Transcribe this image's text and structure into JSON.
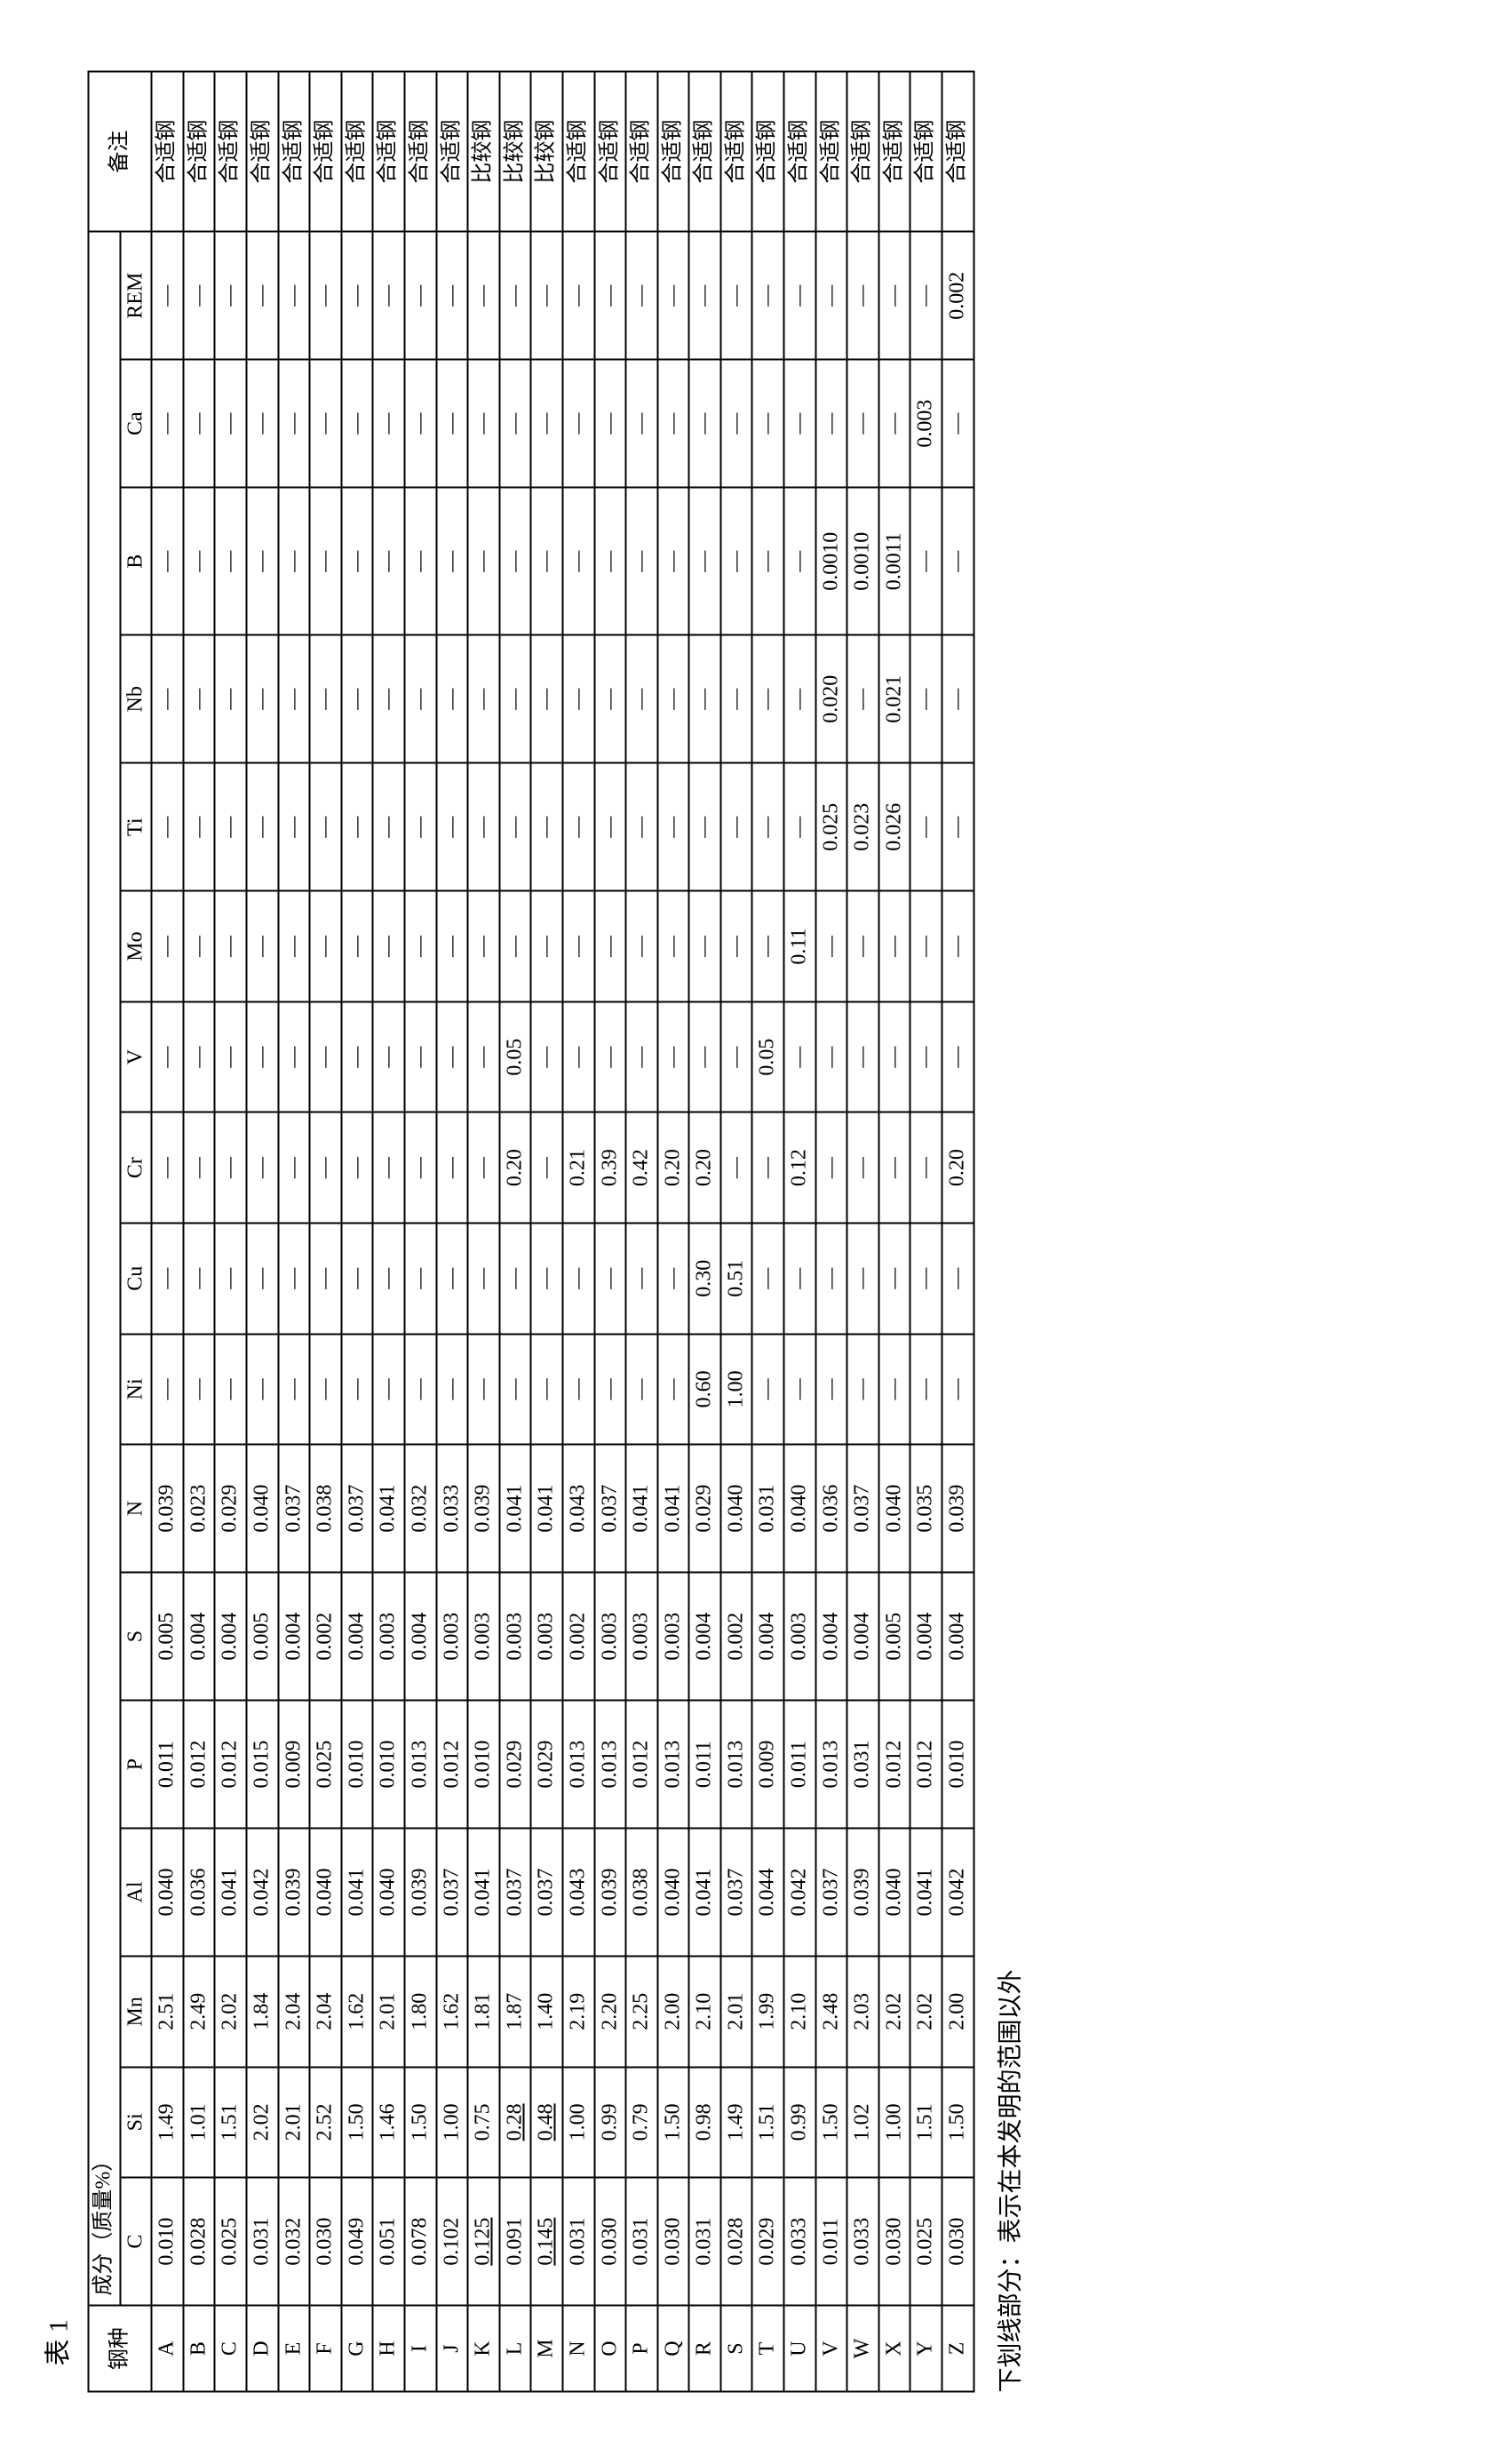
{
  "caption": "表 1",
  "footnote": "下划线部分：表示在本发明的范围以外",
  "header": {
    "steel": "钢种",
    "comp": "成分（质量%）",
    "note": "备注"
  },
  "columns": [
    "C",
    "Si",
    "Mn",
    "Al",
    "P",
    "S",
    "N",
    "Ni",
    "Cu",
    "Cr",
    "V",
    "Mo",
    "Ti",
    "Nb",
    "B",
    "Ca",
    "REM"
  ],
  "note_ok": "合适钢",
  "note_cmp": "比较钢",
  "dash": "—",
  "rows": [
    {
      "id": "A",
      "v": [
        "0.010",
        "1.49",
        "2.51",
        "0.040",
        "0.011",
        "0.005",
        "0.039",
        "",
        "",
        "",
        "",
        "",
        "",
        "",
        "",
        "",
        ""
      ],
      "note": "ok"
    },
    {
      "id": "B",
      "v": [
        "0.028",
        "1.01",
        "2.49",
        "0.036",
        "0.012",
        "0.004",
        "0.023",
        "",
        "",
        "",
        "",
        "",
        "",
        "",
        "",
        "",
        ""
      ],
      "note": "ok"
    },
    {
      "id": "C",
      "v": [
        "0.025",
        "1.51",
        "2.02",
        "0.041",
        "0.012",
        "0.004",
        "0.029",
        "",
        "",
        "",
        "",
        "",
        "",
        "",
        "",
        "",
        ""
      ],
      "note": "ok"
    },
    {
      "id": "D",
      "v": [
        "0.031",
        "2.02",
        "1.84",
        "0.042",
        "0.015",
        "0.005",
        "0.040",
        "",
        "",
        "",
        "",
        "",
        "",
        "",
        "",
        "",
        ""
      ],
      "note": "ok"
    },
    {
      "id": "E",
      "v": [
        "0.032",
        "2.01",
        "2.04",
        "0.039",
        "0.009",
        "0.004",
        "0.037",
        "",
        "",
        "",
        "",
        "",
        "",
        "",
        "",
        "",
        ""
      ],
      "note": "ok"
    },
    {
      "id": "F",
      "v": [
        "0.030",
        "2.52",
        "2.04",
        "0.040",
        "0.025",
        "0.002",
        "0.038",
        "",
        "",
        "",
        "",
        "",
        "",
        "",
        "",
        "",
        ""
      ],
      "note": "ok"
    },
    {
      "id": "G",
      "v": [
        "0.049",
        "1.50",
        "1.62",
        "0.041",
        "0.010",
        "0.004",
        "0.037",
        "",
        "",
        "",
        "",
        "",
        "",
        "",
        "",
        "",
        ""
      ],
      "note": "ok"
    },
    {
      "id": "H",
      "v": [
        "0.051",
        "1.46",
        "2.01",
        "0.040",
        "0.010",
        "0.003",
        "0.041",
        "",
        "",
        "",
        "",
        "",
        "",
        "",
        "",
        "",
        ""
      ],
      "note": "ok"
    },
    {
      "id": "I",
      "v": [
        "0.078",
        "1.50",
        "1.80",
        "0.039",
        "0.013",
        "0.004",
        "0.032",
        "",
        "",
        "",
        "",
        "",
        "",
        "",
        "",
        "",
        ""
      ],
      "note": "ok"
    },
    {
      "id": "J",
      "v": [
        "0.102",
        "1.00",
        "1.62",
        "0.037",
        "0.012",
        "0.003",
        "0.033",
        "",
        "",
        "",
        "",
        "",
        "",
        "",
        "",
        "",
        ""
      ],
      "note": "ok"
    },
    {
      "id": "K",
      "v": [
        "0.125",
        "0.75",
        "1.81",
        "0.041",
        "0.010",
        "0.003",
        "0.039",
        "",
        "",
        "",
        "",
        "",
        "",
        "",
        "",
        "",
        ""
      ],
      "u": [
        0
      ],
      "note": "cmp"
    },
    {
      "id": "L",
      "v": [
        "0.091",
        "0.28",
        "1.87",
        "0.037",
        "0.029",
        "0.003",
        "0.041",
        "",
        "",
        "0.20",
        "0.05",
        "",
        "",
        "",
        "",
        "",
        ""
      ],
      "u": [
        1
      ],
      "note": "cmp"
    },
    {
      "id": "M",
      "v": [
        "0.145",
        "0.48",
        "1.40",
        "0.037",
        "0.029",
        "0.003",
        "0.041",
        "",
        "",
        "",
        "",
        "",
        "",
        "",
        "",
        "",
        ""
      ],
      "u": [
        0,
        1
      ],
      "note": "cmp"
    },
    {
      "id": "N",
      "v": [
        "0.031",
        "1.00",
        "2.19",
        "0.043",
        "0.013",
        "0.002",
        "0.043",
        "",
        "",
        "0.21",
        "",
        "",
        "",
        "",
        "",
        "",
        ""
      ],
      "note": "ok"
    },
    {
      "id": "O",
      "v": [
        "0.030",
        "0.99",
        "2.20",
        "0.039",
        "0.013",
        "0.003",
        "0.037",
        "",
        "",
        "0.39",
        "",
        "",
        "",
        "",
        "",
        "",
        ""
      ],
      "note": "ok"
    },
    {
      "id": "P",
      "v": [
        "0.031",
        "0.79",
        "2.25",
        "0.038",
        "0.012",
        "0.003",
        "0.041",
        "",
        "",
        "0.42",
        "",
        "",
        "",
        "",
        "",
        "",
        ""
      ],
      "note": "ok"
    },
    {
      "id": "Q",
      "v": [
        "0.030",
        "1.50",
        "2.00",
        "0.040",
        "0.013",
        "0.003",
        "0.041",
        "",
        "",
        "0.20",
        "",
        "",
        "",
        "",
        "",
        "",
        ""
      ],
      "note": "ok"
    },
    {
      "id": "R",
      "v": [
        "0.031",
        "0.98",
        "2.10",
        "0.041",
        "0.011",
        "0.004",
        "0.029",
        "0.60",
        "0.30",
        "0.20",
        "",
        "",
        "",
        "",
        "",
        "",
        ""
      ],
      "note": "ok"
    },
    {
      "id": "S",
      "v": [
        "0.028",
        "1.49",
        "2.01",
        "0.037",
        "0.013",
        "0.002",
        "0.040",
        "1.00",
        "0.51",
        "",
        "",
        "",
        "",
        "",
        "",
        "",
        ""
      ],
      "note": "ok"
    },
    {
      "id": "T",
      "v": [
        "0.029",
        "1.51",
        "1.99",
        "0.044",
        "0.009",
        "0.004",
        "0.031",
        "",
        "",
        "",
        "0.05",
        "",
        "",
        "",
        "",
        "",
        ""
      ],
      "note": "ok"
    },
    {
      "id": "U",
      "v": [
        "0.033",
        "0.99",
        "2.10",
        "0.042",
        "0.011",
        "0.003",
        "0.040",
        "",
        "",
        "0.12",
        "",
        "0.11",
        "",
        "",
        "",
        "",
        ""
      ],
      "note": "ok"
    },
    {
      "id": "V",
      "v": [
        "0.011",
        "1.50",
        "2.48",
        "0.037",
        "0.013",
        "0.004",
        "0.036",
        "",
        "",
        "",
        "",
        "",
        "0.025",
        "0.020",
        "0.0010",
        "",
        ""
      ],
      "note": "ok"
    },
    {
      "id": "W",
      "v": [
        "0.033",
        "1.02",
        "2.03",
        "0.039",
        "0.031",
        "0.004",
        "0.037",
        "",
        "",
        "",
        "",
        "",
        "0.023",
        "",
        "0.0010",
        "",
        ""
      ],
      "note": "ok"
    },
    {
      "id": "X",
      "v": [
        "0.030",
        "1.00",
        "2.02",
        "0.040",
        "0.012",
        "0.005",
        "0.040",
        "",
        "",
        "",
        "",
        "",
        "0.026",
        "0.021",
        "0.0011",
        "",
        ""
      ],
      "note": "ok"
    },
    {
      "id": "Y",
      "v": [
        "0.025",
        "1.51",
        "2.02",
        "0.041",
        "0.012",
        "0.004",
        "0.035",
        "",
        "",
        "",
        "",
        "",
        "",
        "",
        "",
        "0.003",
        ""
      ],
      "note": "ok"
    },
    {
      "id": "Z",
      "v": [
        "0.030",
        "1.50",
        "2.00",
        "0.042",
        "0.010",
        "0.004",
        "0.039",
        "",
        "",
        "0.20",
        "",
        "",
        "",
        "",
        "",
        "",
        "0.002"
      ],
      "note": "ok"
    }
  ]
}
